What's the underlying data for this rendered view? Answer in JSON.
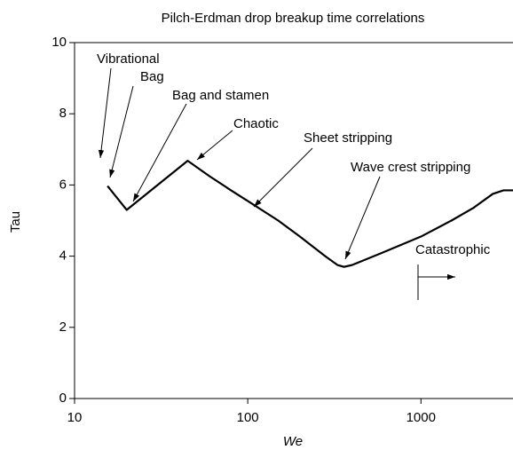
{
  "chart_data": {
    "type": "line",
    "title": "Pilch-Erdman drop breakup time correlations",
    "x_label": "We",
    "y_label": "Tau",
    "xscale": "log",
    "xlim": [
      10,
      3400
    ],
    "ylim": [
      0,
      10
    ],
    "xticks": [
      10,
      100,
      1000
    ],
    "yticks": [
      0,
      2,
      4,
      6,
      8,
      10
    ],
    "x": [
      15.5,
      20,
      45,
      60,
      80,
      100,
      150,
      200,
      280,
      330,
      360,
      400,
      600,
      1000,
      1500,
      2000,
      2600,
      3000,
      3400
    ],
    "series": [
      {
        "color": "#000000",
        "values": [
          5.97,
          5.3,
          6.68,
          6.25,
          5.85,
          5.55,
          5.0,
          4.55,
          4.0,
          3.75,
          3.7,
          3.75,
          4.1,
          4.55,
          5.0,
          5.35,
          5.75,
          5.85,
          5.85
        ]
      }
    ],
    "annotations": [
      "Vibrational",
      "Bag",
      "Bag and stamen",
      "Chaotic",
      "Sheet stripping",
      "Wave crest stripping",
      "Catastrophic"
    ]
  }
}
